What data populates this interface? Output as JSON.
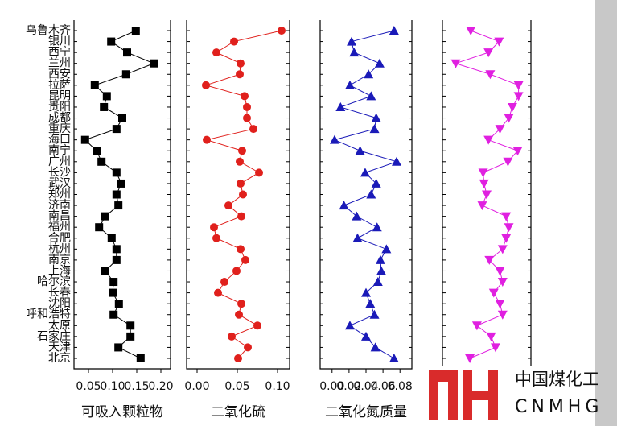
{
  "chart_data": [
    {
      "type": "line",
      "x_label": "可吸入颗粒物",
      "color": "#000000",
      "marker": "square",
      "categories": [
        "乌鲁木齐",
        "银川",
        "西宁",
        "兰州",
        "西安",
        "拉萨",
        "昆明",
        "贵阳",
        "成都",
        "重庆",
        "海口",
        "南宁",
        "广州",
        "长沙",
        "武汉",
        "郑州",
        "济南",
        "南昌",
        "福州",
        "合肥",
        "杭州",
        "南京",
        "上海",
        "哈尔滨",
        "长春",
        "沈阳",
        "呼和浩特",
        "太原",
        "石家庄",
        "天津",
        "北京"
      ],
      "values": [
        0.148,
        0.097,
        0.13,
        0.185,
        0.128,
        0.063,
        0.088,
        0.082,
        0.12,
        0.108,
        0.043,
        0.067,
        0.077,
        0.108,
        0.118,
        0.108,
        0.112,
        0.085,
        0.072,
        0.098,
        0.108,
        0.108,
        0.085,
        0.102,
        0.1,
        0.113,
        0.102,
        0.137,
        0.137,
        0.112,
        0.158
      ],
      "xlim": [
        0.02,
        0.22
      ],
      "xticks": [
        0.05,
        {
          "value": 0.1,
          "label": "0.10"
        },
        0.15,
        {
          "value": 0.2,
          "label": "0.20"
        }
      ]
    },
    {
      "type": "line",
      "x_label": "二氧化硫",
      "color": "#e0201c",
      "marker": "circle",
      "values": [
        0.105,
        0.046,
        0.024,
        0.054,
        0.053,
        0.011,
        0.059,
        0.062,
        0.062,
        0.07,
        0.012,
        0.056,
        0.053,
        0.077,
        0.054,
        0.057,
        0.039,
        0.055,
        0.021,
        0.024,
        0.054,
        0.06,
        0.049,
        0.034,
        0.026,
        0.055,
        0.052,
        0.075,
        0.043,
        0.063,
        0.051
      ],
      "xlim": [
        -0.013,
        0.115
      ],
      "xticks": [
        {
          "value": 0,
          "label": "0.00"
        },
        0.05,
        {
          "value": 0.1,
          "label": "0.10"
        }
      ]
    },
    {
      "type": "line",
      "x_label": "二氧化氮质量",
      "color": "#1a1ab8",
      "marker": "triangle",
      "values": [
        0.073,
        0.023,
        0.026,
        0.056,
        0.043,
        0.021,
        0.046,
        0.01,
        0.052,
        0.05,
        0.003,
        0.033,
        0.076,
        0.039,
        0.052,
        0.046,
        0.014,
        0.029,
        0.053,
        0.03,
        0.064,
        0.057,
        0.058,
        0.054,
        0.04,
        0.045,
        0.05,
        0.021,
        0.04,
        0.051,
        0.073
      ],
      "xlim": [
        -0.014,
        0.094
      ],
      "xticks": [
        {
          "value": 0,
          "label": "0.00"
        },
        0.02,
        0.04,
        0.06,
        0.08
      ]
    },
    {
      "type": "line",
      "color": "#e020e0",
      "marker": "triangle-down",
      "values": [
        32,
        64,
        52,
        15,
        54,
        86,
        86,
        79,
        75,
        65,
        52,
        85,
        74,
        46,
        47,
        50,
        45,
        72,
        75,
        72,
        68,
        53,
        65,
        68,
        58,
        65,
        68,
        39,
        55,
        60,
        31
      ],
      "xlim": [
        0,
        100
      ],
      "xticks": []
    }
  ],
  "watermark": {
    "brand": "中国煤化工",
    "code": "CNMHG"
  }
}
